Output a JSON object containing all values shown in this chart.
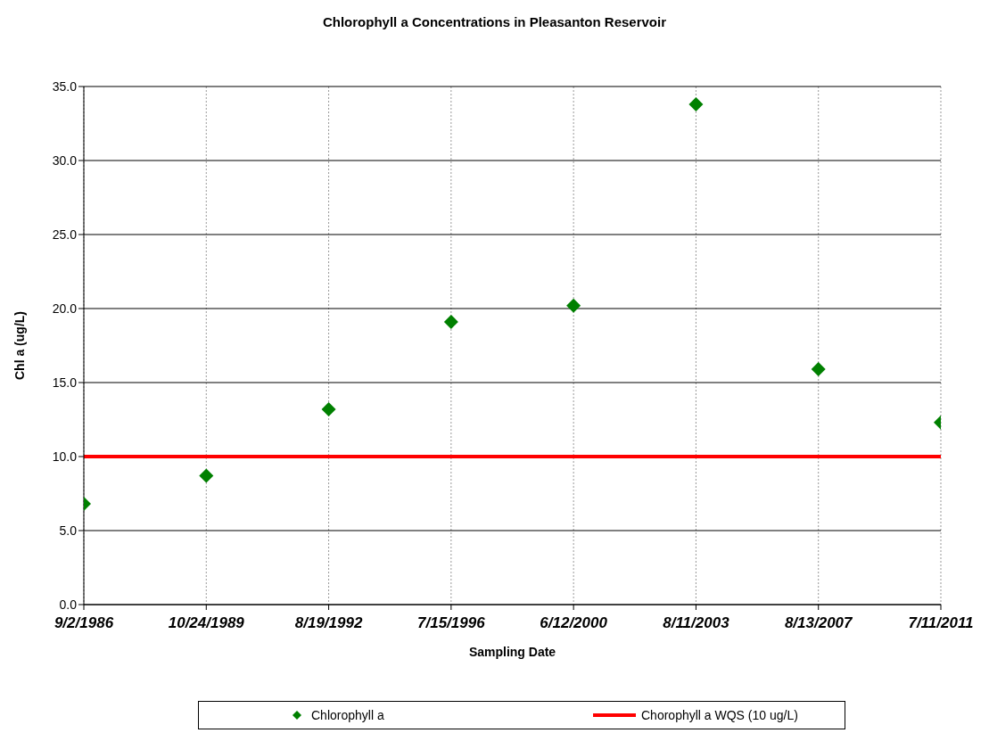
{
  "chart_data": {
    "type": "scatter",
    "title": "Chlorophyll a Concentrations in Pleasanton Reservoir",
    "xlabel": "Sampling Date",
    "ylabel": "Chl a (ug/L)",
    "categories": [
      "9/2/1986",
      "10/24/1989",
      "8/19/1992",
      "7/15/1996",
      "6/12/2000",
      "8/11/2003",
      "8/13/2007",
      "7/11/2011"
    ],
    "series": [
      {
        "name": "Chlorophyll a",
        "color": "#008000",
        "values": [
          6.8,
          8.7,
          13.2,
          19.1,
          20.2,
          33.8,
          15.9,
          12.3
        ]
      }
    ],
    "ref_lines": [
      {
        "axis": "y",
        "value": 10,
        "label": "Chorophyll a WQS (10 ug/L)",
        "color": "#ff0000",
        "line_style": "solid"
      }
    ],
    "ylim": [
      0,
      35
    ],
    "yticks": [
      {
        "value": 0,
        "label": "0.0"
      },
      {
        "value": 5,
        "label": "5.0"
      },
      {
        "value": 10,
        "label": "10.0"
      },
      {
        "value": 15,
        "label": "15.0"
      },
      {
        "value": 20,
        "label": "20.0"
      },
      {
        "value": 25,
        "label": "25.0"
      },
      {
        "value": 30,
        "label": "30.0"
      },
      {
        "value": 35,
        "label": "35.0"
      }
    ],
    "grid": true,
    "legend": "bottom",
    "marker": "diamond"
  }
}
